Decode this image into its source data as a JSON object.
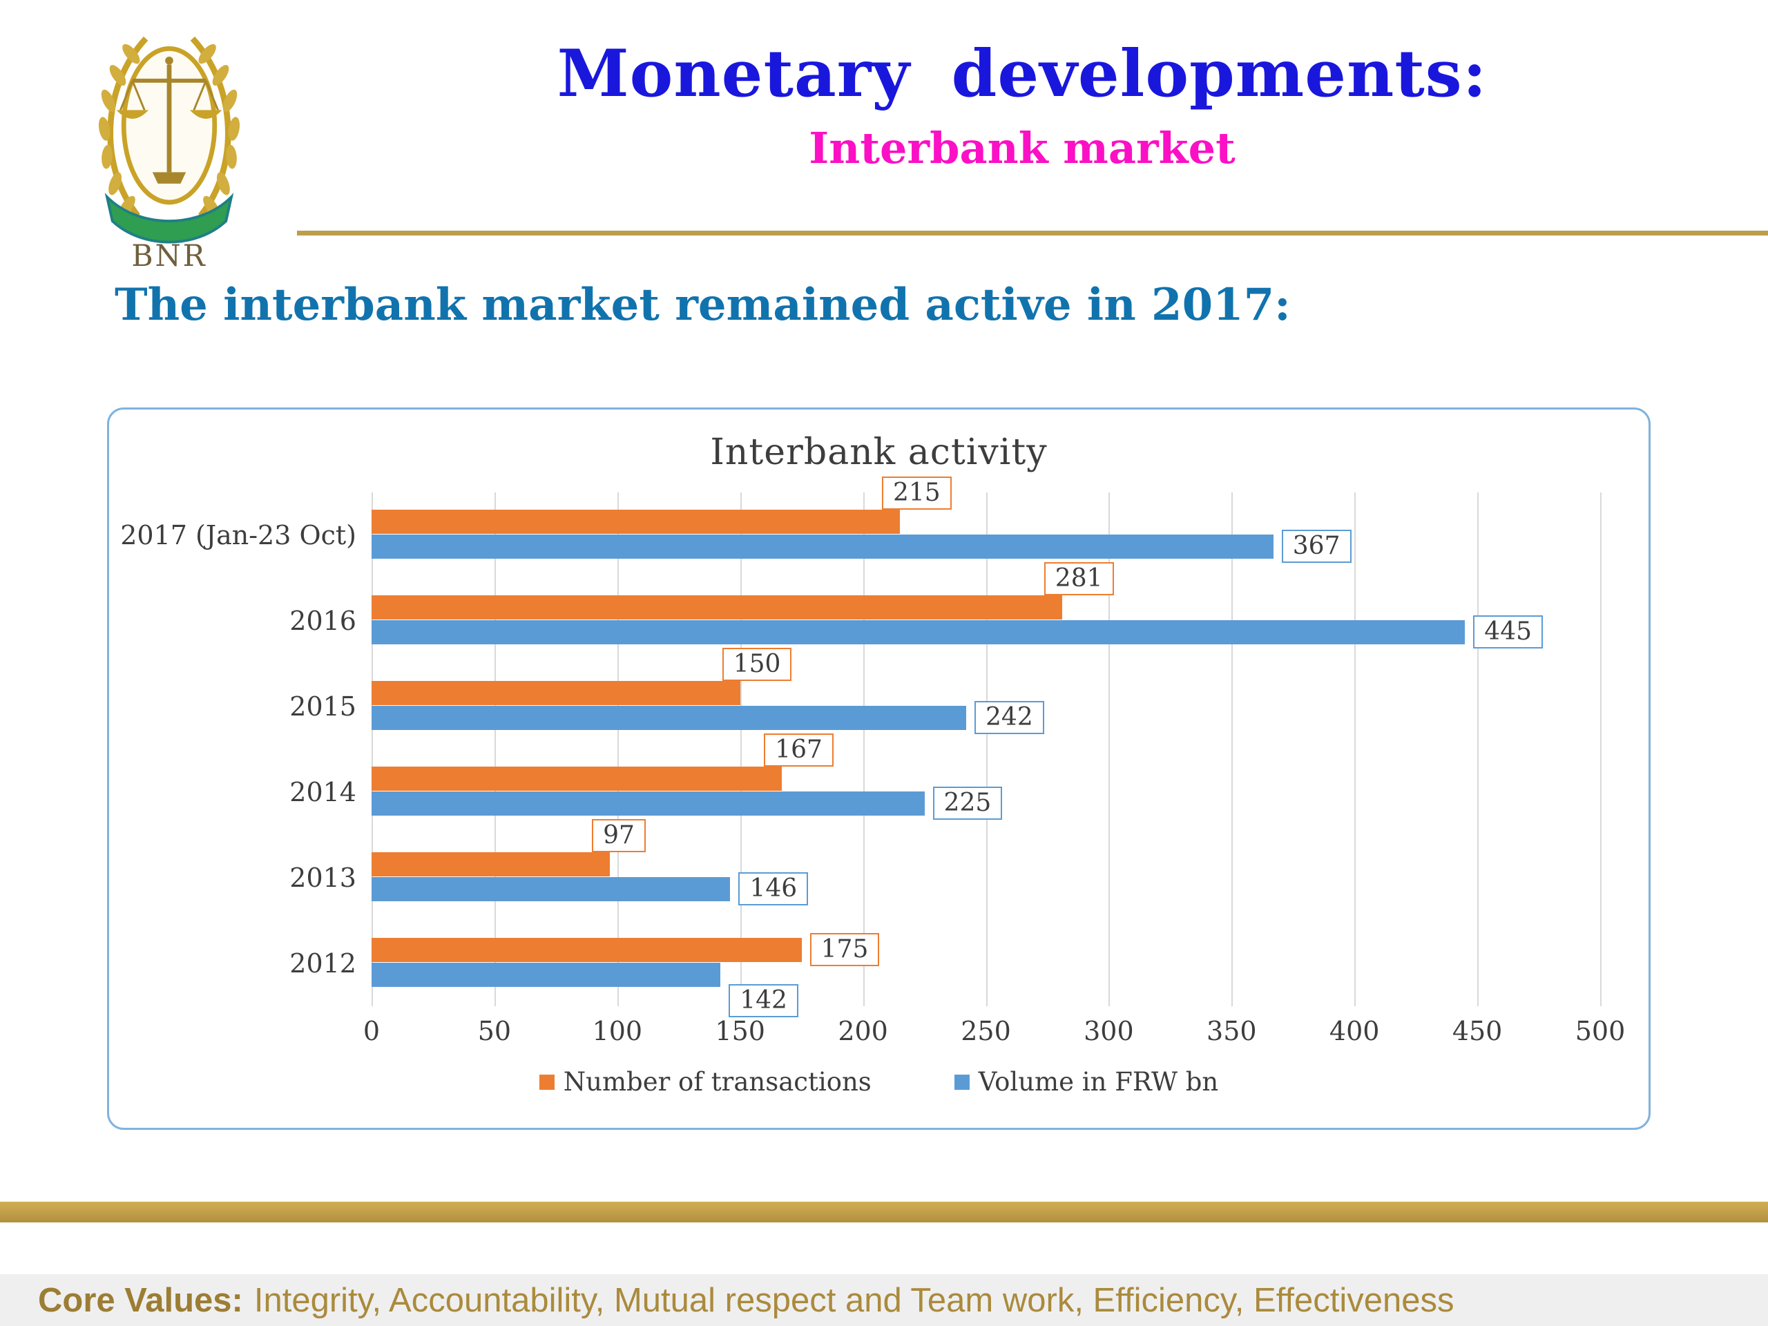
{
  "header": {
    "title": "Monetary developments:",
    "subtitle": "Interbank market",
    "logo_text": "BNR"
  },
  "lead": "The interbank market remained active in 2017:",
  "chart_data": {
    "type": "bar",
    "orientation": "horizontal",
    "title": "Interbank activity",
    "categories": [
      "2017 (Jan-23 Oct)",
      "2016",
      "2015",
      "2014",
      "2013",
      "2012"
    ],
    "series": [
      {
        "name": "Number of transactions",
        "color": "#ed7d31",
        "values": [
          215,
          281,
          150,
          167,
          97,
          175
        ]
      },
      {
        "name": "Volume in FRW bn",
        "color": "#5b9bd5",
        "values": [
          367,
          445,
          242,
          225,
          146,
          142
        ]
      }
    ],
    "xlim": [
      0,
      500
    ],
    "x_ticks": [
      0,
      50,
      100,
      150,
      200,
      250,
      300,
      350,
      400,
      450,
      500
    ],
    "grid": true,
    "data_labels": true,
    "legend_position": "bottom"
  },
  "footer": {
    "core_values_label": "Core Values:",
    "core_values_text": "Integrity, Accountability, Mutual respect and Team work, Efficiency, Effectiveness"
  },
  "colors": {
    "title_blue": "#1a17dd",
    "subtitle_magenta": "#fb10c5",
    "heading_teal": "#1173ad",
    "gold": "#bd9d4c",
    "bar_orange": "#ed7d31",
    "bar_blue": "#5b9bd5",
    "chart_border": "#7fb3de"
  }
}
